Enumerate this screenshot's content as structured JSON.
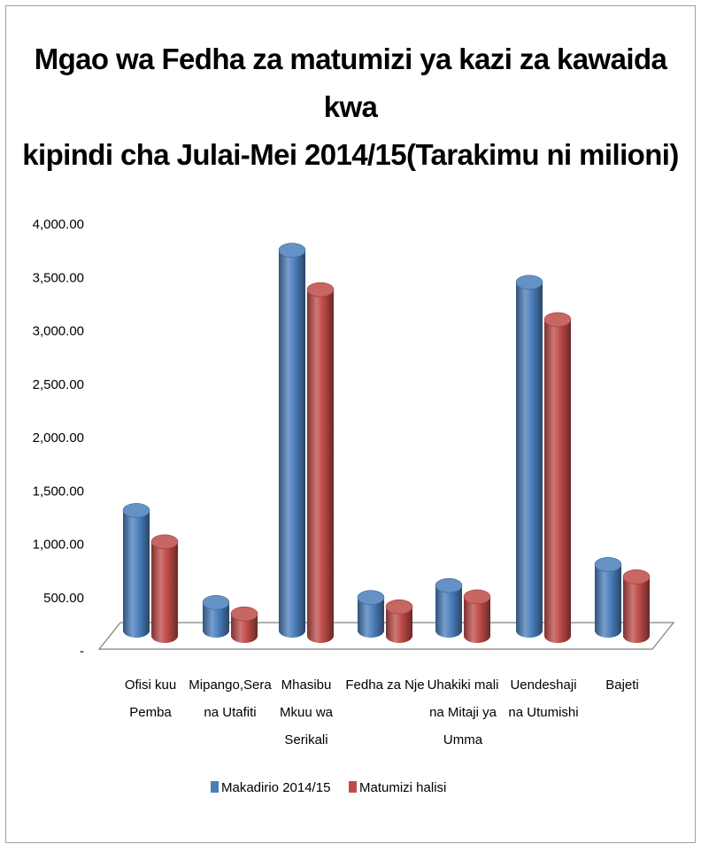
{
  "chart_data": {
    "type": "bar",
    "title_lines": [
      "Mgao wa Fedha za matumizi ya kazi za kawaida kwa",
      "kipindi cha Julai-Mei 2014/15(Tarakimu ni milioni)"
    ],
    "categories": [
      [
        "Ofisi kuu",
        "Pemba"
      ],
      [
        "Mipango,Sera",
        "na Utafiti"
      ],
      [
        "Mhasibu",
        "Mkuu wa",
        "Serikali"
      ],
      [
        "Fedha za Nje"
      ],
      [
        "Uhakiki mali",
        "na Mitaji ya",
        "Umma"
      ],
      [
        "Uendeshaji",
        "na Utumishi"
      ],
      [
        "Bajeti"
      ]
    ],
    "series": [
      {
        "name": "Makadirio 2014/15",
        "color": "#4a7ebb",
        "values": [
          1200,
          280,
          3800,
          330,
          450,
          3480,
          660
        ]
      },
      {
        "name": "Matumizi halisi",
        "color": "#be4b48",
        "values": [
          940,
          220,
          3460,
          290,
          390,
          3160,
          590
        ]
      }
    ],
    "y_ticks": [
      "-",
      "500.00",
      "1,000.00",
      "1,500.00",
      "2,000.00",
      "2,500.00",
      "3,000.00",
      "3,500.00",
      "4,000.00"
    ],
    "ylim": [
      0,
      4000
    ],
    "legend_position": "bottom",
    "style": "3d-cylinder"
  }
}
